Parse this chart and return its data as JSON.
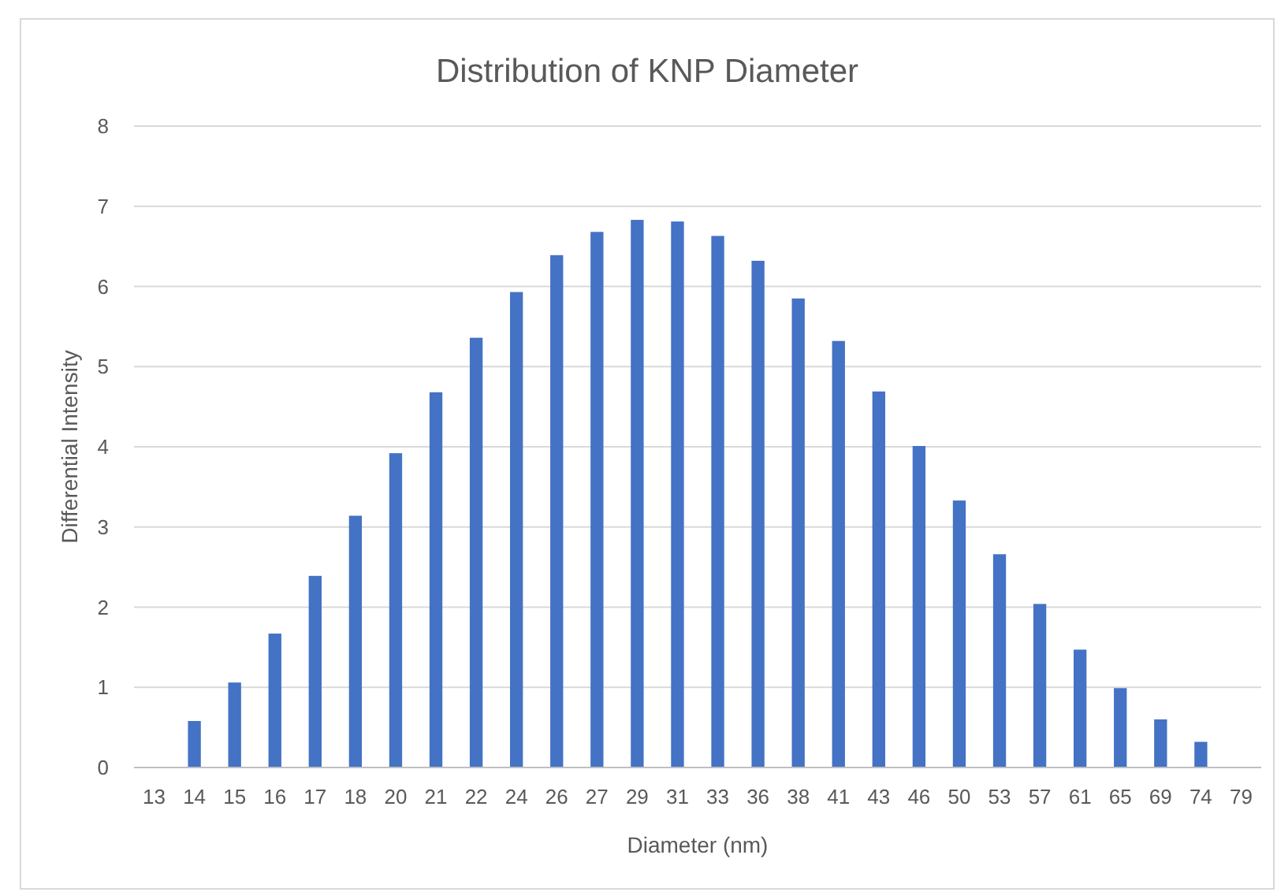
{
  "chart_data": {
    "type": "bar",
    "title": "Distribution of KNP Diameter",
    "xlabel": "Diameter (nm)",
    "ylabel": "Differential Intensity",
    "categories": [
      "13",
      "14",
      "15",
      "16",
      "17",
      "18",
      "20",
      "21",
      "22",
      "24",
      "26",
      "27",
      "29",
      "31",
      "33",
      "36",
      "38",
      "41",
      "43",
      "46",
      "50",
      "53",
      "57",
      "61",
      "65",
      "69",
      "74",
      "79"
    ],
    "values": [
      0,
      0.58,
      1.06,
      1.67,
      2.39,
      3.14,
      3.92,
      4.68,
      5.36,
      5.93,
      6.39,
      6.68,
      6.83,
      6.81,
      6.63,
      6.32,
      5.85,
      5.32,
      4.69,
      4.01,
      3.33,
      2.66,
      2.04,
      1.47,
      0.99,
      0.6,
      0.32,
      0
    ],
    "color": "#4472c4",
    "ylim": [
      0,
      8
    ],
    "yticks": [
      0,
      1,
      2,
      3,
      4,
      5,
      6,
      7,
      8
    ],
    "grid": "y"
  }
}
